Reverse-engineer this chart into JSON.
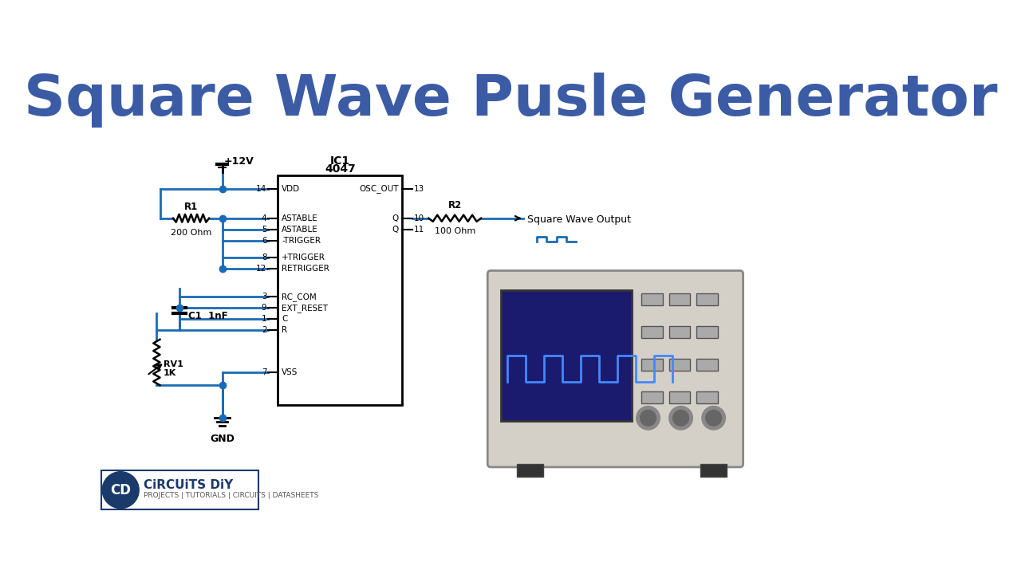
{
  "title": "Square Wave Pusle Generator",
  "title_color": "#3B5BA5",
  "title_fontsize": 52,
  "bg_color": "#ffffff",
  "circuit_color": "#2060A0",
  "wire_color": "#1a6bb5",
  "ic_box_color": "#000000",
  "ic_label": "IC1\n4047",
  "ic_pins_left": [
    "VDD",
    "ASTABLE",
    "ASTABLE",
    "-TRIGGER",
    "+TRIGGER",
    "RETRIGGER",
    "",
    "RC_COM",
    "EXT_RESET",
    "C",
    "R",
    "",
    "VSS"
  ],
  "ic_pins_left_nums": [
    "14",
    "4",
    "5",
    "6",
    "8",
    "12",
    "",
    "3",
    "9",
    "1",
    "2",
    "",
    "7"
  ],
  "ic_pins_right": [
    "OSC_OUT",
    "",
    "Q",
    "Q"
  ],
  "ic_pins_right_nums": [
    "13",
    "",
    "10",
    "11"
  ],
  "r1_label": "R1\n200 Ohm",
  "r2_label": "R2\n100 Ohm",
  "c1_label": "C1  1nF",
  "rv1_label": "RV1\n1K",
  "vdd_label": "+12V",
  "gnd_label": "GND",
  "output_label": "Square Wave Output",
  "logo_text": "CiRCUiTS DiY",
  "logo_sub": "PROJECTS | TUTORIALS | CIRCUITS | DATASHEETS"
}
